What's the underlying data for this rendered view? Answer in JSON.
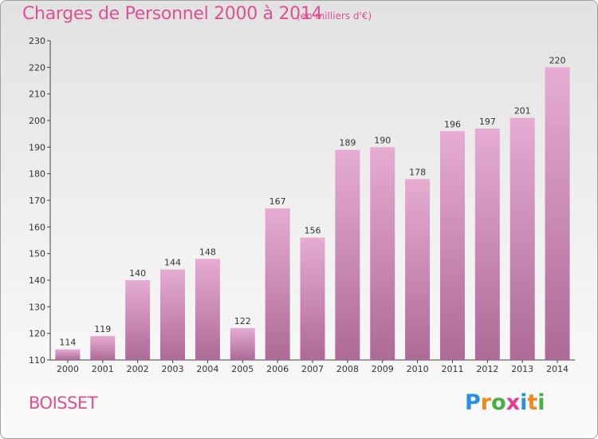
{
  "title": "Charges de Personnel 2000 à 2014",
  "subtitle": "(en milliers d'€)",
  "place": "BOISSET",
  "logo": {
    "letters": [
      "P",
      "r",
      "o",
      "x",
      "i",
      "t",
      "i"
    ],
    "colors": [
      "#2b8ee0",
      "#f08a1d",
      "#48b040",
      "#e83c8c",
      "#2b8ee0",
      "#f08a1d",
      "#48b040"
    ]
  },
  "colors": {
    "bar_top": "#e6acd2",
    "bar_bottom": "#ad6a97",
    "accent": "#e0508e"
  },
  "chart_data": {
    "type": "bar",
    "categories": [
      "2000",
      "2001",
      "2002",
      "2003",
      "2004",
      "2005",
      "2006",
      "2007",
      "2008",
      "2009",
      "2010",
      "2011",
      "2012",
      "2013",
      "2014"
    ],
    "values": [
      114,
      119,
      140,
      144,
      148,
      122,
      167,
      156,
      189,
      190,
      178,
      196,
      197,
      201,
      220
    ],
    "title": "Charges de Personnel 2000 à 2014",
    "subtitle": "(en milliers d'€)",
    "xlabel": "",
    "ylabel": "",
    "ylim": [
      110,
      230
    ],
    "yticks": [
      110,
      120,
      130,
      140,
      150,
      160,
      170,
      180,
      190,
      200,
      210,
      220,
      230
    ],
    "grid": false
  }
}
